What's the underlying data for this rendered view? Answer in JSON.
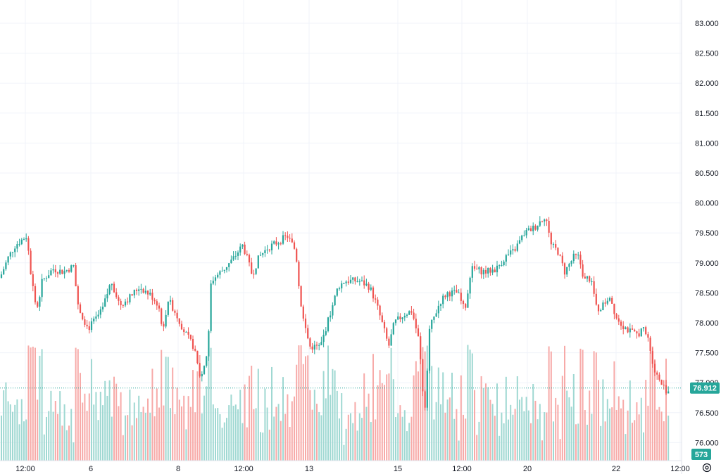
{
  "chart_data": {
    "type": "candlestick",
    "y_axis": {
      "ticks": [
        "83.000",
        "82.500",
        "82.000",
        "81.500",
        "81.000",
        "80.500",
        "80.000",
        "79.500",
        "79.000",
        "78.500",
        "78.000",
        "77.500",
        "77.000",
        "76.500",
        "76.000"
      ],
      "ylim": [
        75.8,
        83.2
      ]
    },
    "x_axis": {
      "ticks": [
        "12:00",
        "6",
        "8",
        "12:00",
        "13",
        "15",
        "12:00",
        "20",
        "22",
        "12:00"
      ]
    },
    "last_price": "76.912",
    "volume_label": "573",
    "colors": {
      "up": "#26a69a",
      "down": "#ef5350",
      "up_volume": "#9fd8d2",
      "down_volume": "#f7aaa8",
      "grid": "#f0f3fa"
    },
    "grid": true,
    "anchors": [
      [
        0,
        78.75
      ],
      [
        12,
        79.1
      ],
      [
        22,
        79.3
      ],
      [
        38,
        79.45
      ],
      [
        44,
        78.8
      ],
      [
        52,
        78.2
      ],
      [
        60,
        78.7
      ],
      [
        75,
        78.9
      ],
      [
        90,
        78.85
      ],
      [
        105,
        78.95
      ],
      [
        110,
        78.3
      ],
      [
        125,
        77.9
      ],
      [
        135,
        78.05
      ],
      [
        145,
        78.2
      ],
      [
        158,
        78.7
      ],
      [
        170,
        78.3
      ],
      [
        182,
        78.4
      ],
      [
        198,
        78.6
      ],
      [
        215,
        78.45
      ],
      [
        225,
        78.3
      ],
      [
        232,
        77.85
      ],
      [
        238,
        78.4
      ],
      [
        248,
        78.2
      ],
      [
        262,
        77.85
      ],
      [
        275,
        77.6
      ],
      [
        285,
        77.05
      ],
      [
        295,
        77.55
      ],
      [
        300,
        78.7
      ],
      [
        318,
        78.9
      ],
      [
        330,
        79.05
      ],
      [
        345,
        79.3
      ],
      [
        358,
        78.8
      ],
      [
        368,
        79.1
      ],
      [
        380,
        79.25
      ],
      [
        395,
        79.35
      ],
      [
        408,
        79.45
      ],
      [
        420,
        79.2
      ],
      [
        428,
        78.2
      ],
      [
        440,
        77.6
      ],
      [
        455,
        77.6
      ],
      [
        470,
        78.2
      ],
      [
        480,
        78.6
      ],
      [
        490,
        78.7
      ],
      [
        510,
        78.7
      ],
      [
        525,
        78.6
      ],
      [
        535,
        78.3
      ],
      [
        545,
        77.9
      ],
      [
        552,
        77.6
      ],
      [
        560,
        78.0
      ],
      [
        575,
        78.15
      ],
      [
        585,
        78.2
      ],
      [
        595,
        77.7
      ],
      [
        603,
        76.5
      ],
      [
        610,
        77.9
      ],
      [
        625,
        78.35
      ],
      [
        635,
        78.5
      ],
      [
        650,
        78.5
      ],
      [
        660,
        78.2
      ],
      [
        670,
        78.9
      ],
      [
        690,
        78.85
      ],
      [
        705,
        78.9
      ],
      [
        718,
        79.1
      ],
      [
        730,
        79.2
      ],
      [
        745,
        79.5
      ],
      [
        760,
        79.6
      ],
      [
        775,
        79.8
      ],
      [
        782,
        79.3
      ],
      [
        792,
        79.2
      ],
      [
        802,
        78.85
      ],
      [
        815,
        79.1
      ],
      [
        822,
        79.1
      ],
      [
        828,
        78.8
      ],
      [
        840,
        78.7
      ],
      [
        848,
        78.2
      ],
      [
        857,
        78.3
      ],
      [
        866,
        78.45
      ],
      [
        875,
        78.1
      ],
      [
        885,
        77.95
      ],
      [
        895,
        77.85
      ],
      [
        905,
        77.8
      ],
      [
        913,
        77.9
      ],
      [
        920,
        77.75
      ],
      [
        928,
        77.3
      ],
      [
        935,
        77.05
      ],
      [
        941,
        76.95
      ],
      [
        948,
        76.85
      ],
      [
        952,
        76.912
      ]
    ]
  }
}
